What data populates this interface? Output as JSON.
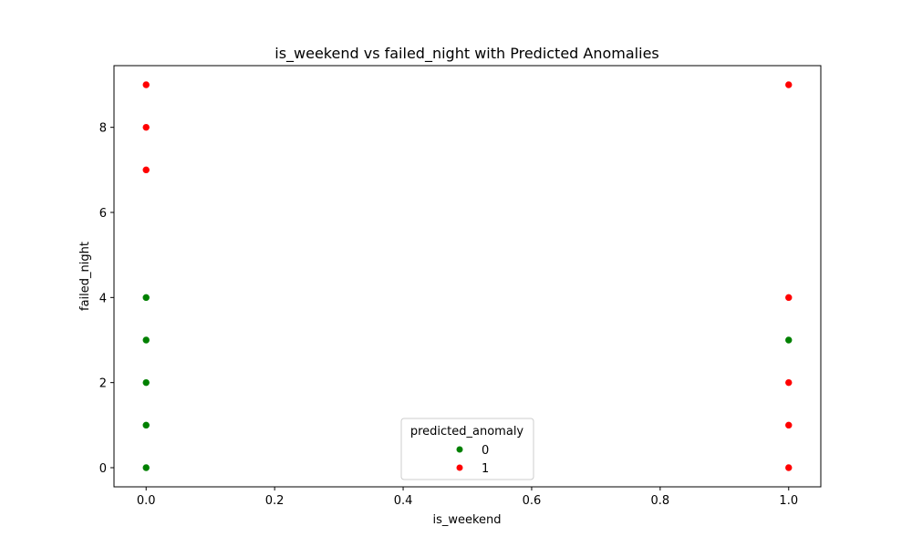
{
  "chart_data": {
    "type": "scatter",
    "title": "is_weekend vs failed_night with Predicted Anomalies",
    "xlabel": "is_weekend",
    "ylabel": "failed_night",
    "xlim": [
      -0.05,
      1.05
    ],
    "ylim": [
      -0.45,
      9.45
    ],
    "xticks": [
      "0.0",
      "0.2",
      "0.4",
      "0.6",
      "0.8",
      "1.0"
    ],
    "xtick_values": [
      0,
      0.2,
      0.4,
      0.6,
      0.8,
      1.0
    ],
    "yticks": [
      "0",
      "2",
      "4",
      "6",
      "8"
    ],
    "ytick_values": [
      0,
      2,
      4,
      6,
      8
    ],
    "grid": false,
    "legend": {
      "title": "predicted_anomaly",
      "placement": "bottom-center"
    },
    "series": [
      {
        "name": "0",
        "color": "#008000",
        "points": [
          {
            "x": 0,
            "y": 0
          },
          {
            "x": 0,
            "y": 1
          },
          {
            "x": 0,
            "y": 2
          },
          {
            "x": 0,
            "y": 3
          },
          {
            "x": 0,
            "y": 4
          },
          {
            "x": 1,
            "y": 3
          }
        ]
      },
      {
        "name": "1",
        "color": "#ff0000",
        "points": [
          {
            "x": 0,
            "y": 7
          },
          {
            "x": 0,
            "y": 8
          },
          {
            "x": 0,
            "y": 9
          },
          {
            "x": 1,
            "y": 0
          },
          {
            "x": 1,
            "y": 1
          },
          {
            "x": 1,
            "y": 2
          },
          {
            "x": 1,
            "y": 4
          },
          {
            "x": 1,
            "y": 9
          }
        ]
      }
    ]
  }
}
